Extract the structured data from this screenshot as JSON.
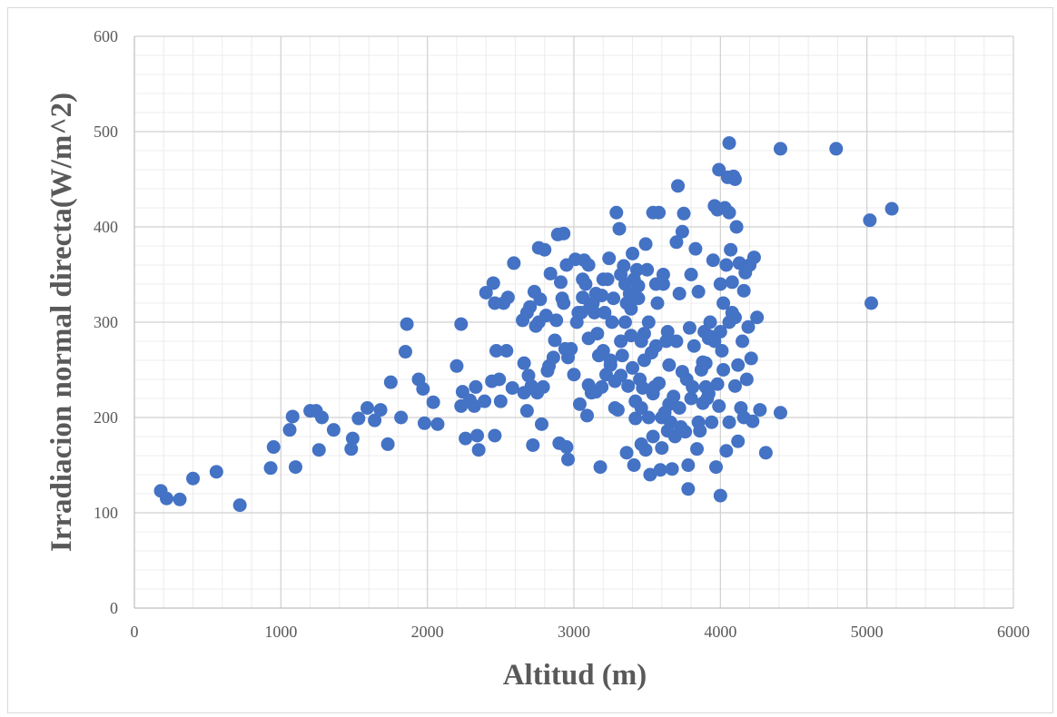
{
  "chart_data": {
    "type": "scatter",
    "title": "",
    "xlabel": "Altitud (m)",
    "ylabel": "Irradiacion normal directa(W/m^2)",
    "xlim": [
      0,
      6000
    ],
    "ylim": [
      0,
      600
    ],
    "xticks": [
      0,
      1000,
      2000,
      3000,
      4000,
      5000,
      6000
    ],
    "yticks": [
      0,
      100,
      200,
      300,
      400,
      500,
      600
    ],
    "xtick_labels": [
      "0",
      "1000",
      "2000",
      "3000",
      "4000",
      "5000",
      "6000"
    ],
    "ytick_labels": [
      "0",
      "100",
      "200",
      "300",
      "400",
      "500",
      "600"
    ],
    "grid": "major and minor",
    "legend": "none",
    "marker_color": "#4472c4",
    "series": [
      {
        "points": [
          [
            180,
            123
          ],
          [
            220,
            115
          ],
          [
            310,
            114
          ],
          [
            400,
            136
          ],
          [
            560,
            143
          ],
          [
            720,
            108
          ],
          [
            930,
            147
          ],
          [
            950,
            169
          ],
          [
            1060,
            187
          ],
          [
            1080,
            201
          ],
          [
            1100,
            148
          ],
          [
            1200,
            207
          ],
          [
            1240,
            207
          ],
          [
            1260,
            166
          ],
          [
            1280,
            200
          ],
          [
            1360,
            187
          ],
          [
            1480,
            167
          ],
          [
            1490,
            178
          ],
          [
            1530,
            199
          ],
          [
            1590,
            210
          ],
          [
            1640,
            197
          ],
          [
            1680,
            208
          ],
          [
            1730,
            172
          ],
          [
            1750,
            237
          ],
          [
            1820,
            200
          ],
          [
            1850,
            269
          ],
          [
            1860,
            298
          ],
          [
            1940,
            240
          ],
          [
            1970,
            230
          ],
          [
            1980,
            194
          ],
          [
            2040,
            216
          ],
          [
            2070,
            193
          ],
          [
            2200,
            254
          ],
          [
            2230,
            298
          ],
          [
            2230,
            212
          ],
          [
            2240,
            227
          ],
          [
            2260,
            178
          ],
          [
            2290,
            218
          ],
          [
            2320,
            212
          ],
          [
            2330,
            232
          ],
          [
            2340,
            181
          ],
          [
            2350,
            166
          ],
          [
            2390,
            217
          ],
          [
            2400,
            331
          ],
          [
            2440,
            238
          ],
          [
            2450,
            341
          ],
          [
            2460,
            181
          ],
          [
            2460,
            320
          ],
          [
            2470,
            270
          ],
          [
            2490,
            240
          ],
          [
            2500,
            217
          ],
          [
            2520,
            320
          ],
          [
            2540,
            270
          ],
          [
            2550,
            326
          ],
          [
            2580,
            231
          ],
          [
            2590,
            362
          ],
          [
            2650,
            302
          ],
          [
            2660,
            226
          ],
          [
            2660,
            257
          ],
          [
            2680,
            207
          ],
          [
            2690,
            244
          ],
          [
            2700,
            316
          ],
          [
            2710,
            233
          ],
          [
            2720,
            171
          ],
          [
            2730,
            332
          ],
          [
            2740,
            296
          ],
          [
            2750,
            226
          ],
          [
            2760,
            378
          ],
          [
            2770,
            324
          ],
          [
            2780,
            193
          ],
          [
            2790,
            232
          ],
          [
            2800,
            376
          ],
          [
            2810,
            307
          ],
          [
            2820,
            249
          ],
          [
            2830,
            254
          ],
          [
            2840,
            351
          ],
          [
            2860,
            263
          ],
          [
            2870,
            281
          ],
          [
            2880,
            302
          ],
          [
            2890,
            392
          ],
          [
            2900,
            173
          ],
          [
            2910,
            342
          ],
          [
            2920,
            325
          ],
          [
            2930,
            320
          ],
          [
            2930,
            393
          ],
          [
            2940,
            272
          ],
          [
            2950,
            169
          ],
          [
            2960,
            156
          ],
          [
            2960,
            263
          ],
          [
            2980,
            272
          ],
          [
            3000,
            245
          ],
          [
            3010,
            366
          ],
          [
            3020,
            300
          ],
          [
            3030,
            310
          ],
          [
            3040,
            214
          ],
          [
            3050,
            310
          ],
          [
            3060,
            326
          ],
          [
            3070,
            365
          ],
          [
            3080,
            340
          ],
          [
            3090,
            202
          ],
          [
            3100,
            360
          ],
          [
            3100,
            234
          ],
          [
            3100,
            283
          ],
          [
            3110,
            316
          ],
          [
            3130,
            320
          ],
          [
            3140,
            310
          ],
          [
            3150,
            227
          ],
          [
            3160,
            288
          ],
          [
            3170,
            265
          ],
          [
            3180,
            148
          ],
          [
            3190,
            328
          ],
          [
            3190,
            232
          ],
          [
            3200,
            270
          ],
          [
            3210,
            310
          ],
          [
            3220,
            245
          ],
          [
            3230,
            345
          ],
          [
            3240,
            367
          ],
          [
            3250,
            255
          ],
          [
            3260,
            300
          ],
          [
            3270,
            325
          ],
          [
            3280,
            238
          ],
          [
            3290,
            415
          ],
          [
            3300,
            208
          ],
          [
            3310,
            398
          ],
          [
            3320,
            280
          ],
          [
            3320,
            244
          ],
          [
            3330,
            265
          ],
          [
            3340,
            359
          ],
          [
            3350,
            300
          ],
          [
            3360,
            163
          ],
          [
            3370,
            233
          ],
          [
            3380,
            330
          ],
          [
            3390,
            314
          ],
          [
            3390,
            286
          ],
          [
            3400,
            372
          ],
          [
            3400,
            252
          ],
          [
            3410,
            150
          ],
          [
            3410,
            345
          ],
          [
            3420,
            199
          ],
          [
            3420,
            217
          ],
          [
            3430,
            355
          ],
          [
            3440,
            325
          ],
          [
            3450,
            240
          ],
          [
            3460,
            172
          ],
          [
            3470,
            231
          ],
          [
            3480,
            288
          ],
          [
            3490,
            382
          ],
          [
            3490,
            166
          ],
          [
            3500,
            355
          ],
          [
            3510,
            300
          ],
          [
            3510,
            200
          ],
          [
            3520,
            140
          ],
          [
            3530,
            268
          ],
          [
            3540,
            415
          ],
          [
            3540,
            180
          ],
          [
            3550,
            232
          ],
          [
            3560,
            340
          ],
          [
            3570,
            320
          ],
          [
            3580,
            415
          ],
          [
            3590,
            145
          ],
          [
            3600,
            168
          ],
          [
            3610,
            350
          ],
          [
            3610,
            340
          ],
          [
            3620,
            205
          ],
          [
            3630,
            280
          ],
          [
            3640,
            290
          ],
          [
            3650,
            214
          ],
          [
            3660,
            195
          ],
          [
            3670,
            146
          ],
          [
            3680,
            222
          ],
          [
            3690,
            180
          ],
          [
            3700,
            384
          ],
          [
            3700,
            280
          ],
          [
            3710,
            443
          ],
          [
            3720,
            210
          ],
          [
            3730,
            190
          ],
          [
            3740,
            395
          ],
          [
            3750,
            414
          ],
          [
            3760,
            185
          ],
          [
            3770,
            240
          ],
          [
            3780,
            125
          ],
          [
            3790,
            294
          ],
          [
            3800,
            350
          ],
          [
            3810,
            232
          ],
          [
            3820,
            275
          ],
          [
            3830,
            377
          ],
          [
            3840,
            167
          ],
          [
            3850,
            332
          ],
          [
            3860,
            186
          ],
          [
            3870,
            250
          ],
          [
            3880,
            215
          ],
          [
            3890,
            290
          ],
          [
            3900,
            257
          ],
          [
            3910,
            220
          ],
          [
            3920,
            283
          ],
          [
            3930,
            300
          ],
          [
            3940,
            195
          ],
          [
            3950,
            365
          ],
          [
            3960,
            422
          ],
          [
            3970,
            148
          ],
          [
            3980,
            418
          ],
          [
            3990,
            460
          ],
          [
            4000,
            118
          ],
          [
            4000,
            340
          ],
          [
            4010,
            270
          ],
          [
            4020,
            250
          ],
          [
            4030,
            420
          ],
          [
            4040,
            360
          ],
          [
            4050,
            452
          ],
          [
            4060,
            488
          ],
          [
            4060,
            415
          ],
          [
            4070,
            376
          ],
          [
            4080,
            342
          ],
          [
            4080,
            310
          ],
          [
            4090,
            453
          ],
          [
            4100,
            233
          ],
          [
            4100,
            450
          ],
          [
            4110,
            400
          ],
          [
            4120,
            175
          ],
          [
            4130,
            362
          ],
          [
            4140,
            210
          ],
          [
            4150,
            280
          ],
          [
            4160,
            333
          ],
          [
            4170,
            352
          ],
          [
            4180,
            240
          ],
          [
            4190,
            295
          ],
          [
            4200,
            360
          ],
          [
            4210,
            262
          ],
          [
            4220,
            196
          ],
          [
            4230,
            368
          ],
          [
            4250,
            305
          ],
          [
            4270,
            208
          ],
          [
            4310,
            163
          ],
          [
            4410,
            205
          ],
          [
            4410,
            482
          ],
          [
            4790,
            482
          ],
          [
            5020,
            407
          ],
          [
            5030,
            320
          ],
          [
            5170,
            419
          ],
          [
            3320,
            350
          ],
          [
            3480,
            260
          ],
          [
            3600,
            200
          ],
          [
            3650,
            255
          ],
          [
            3720,
            330
          ],
          [
            3850,
            195
          ],
          [
            3930,
            285
          ],
          [
            3980,
            235
          ],
          [
            4000,
            290
          ],
          [
            4040,
            165
          ],
          [
            4060,
            300
          ],
          [
            4120,
            255
          ],
          [
            3360,
            320
          ],
          [
            3440,
            338
          ],
          [
            3540,
            225
          ],
          [
            3580,
            236
          ],
          [
            3800,
            220
          ],
          [
            3880,
            258
          ],
          [
            3900,
            232
          ],
          [
            4020,
            320
          ],
          [
            4060,
            195
          ],
          [
            4100,
            305
          ],
          [
            3250,
            260
          ],
          [
            3150,
            330
          ],
          [
            2950,
            360
          ],
          [
            3060,
            345
          ],
          [
            3200,
            345
          ],
          [
            3350,
            340
          ],
          [
            3460,
            210
          ],
          [
            3560,
            275
          ],
          [
            3740,
            248
          ],
          [
            3960,
            280
          ],
          [
            3990,
            212
          ],
          [
            4160,
            200
          ],
          [
            2760,
            300
          ],
          [
            2680,
            310
          ],
          [
            3120,
            226
          ],
          [
            3280,
            210
          ],
          [
            3460,
            280
          ],
          [
            3640,
            186
          ],
          [
            3780,
            150
          ],
          [
            3920,
            225
          ]
        ]
      }
    ]
  }
}
